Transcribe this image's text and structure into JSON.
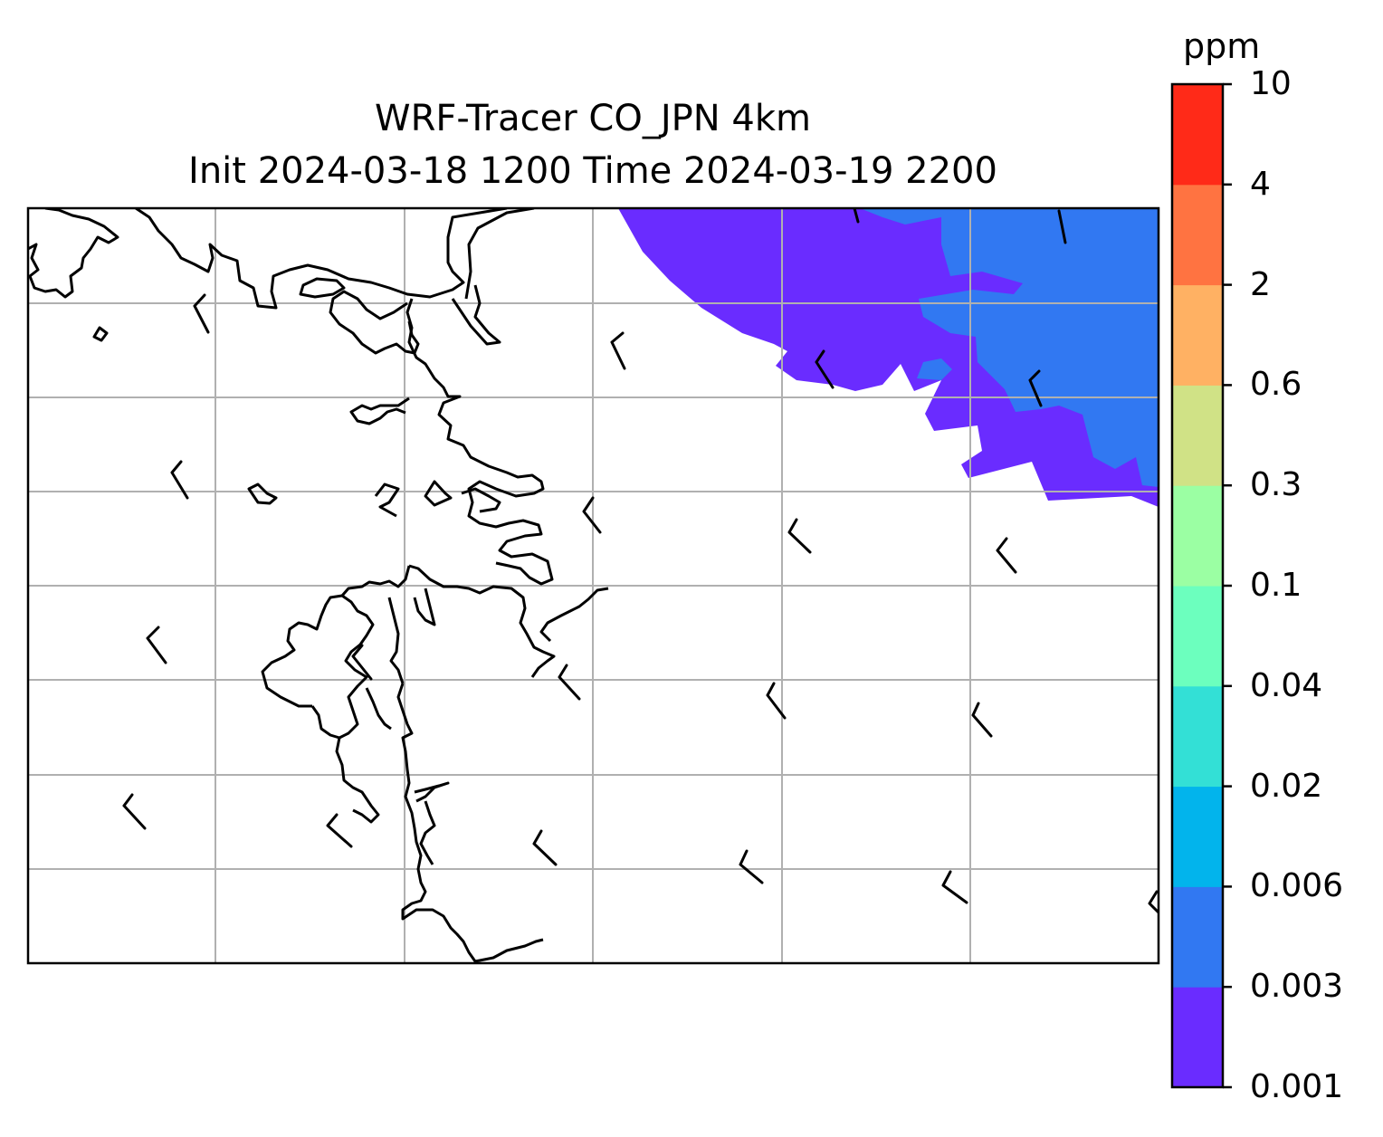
{
  "title": {
    "line1": "WRF-Tracer CO_JPN 4km",
    "line2": "Init 2024-03-18 1200 Time 2024-03-19 2200"
  },
  "colorbar": {
    "unit": "ppm",
    "levels": [
      "0.001",
      "0.003",
      "0.006",
      "0.02",
      "0.04",
      "0.1",
      "0.3",
      "0.6",
      "2",
      "4",
      "10"
    ],
    "colors": [
      "#6a2cff",
      "#3178f2",
      "#02b4ec",
      "#33e0d6",
      "#6cffbe",
      "#9bffa3",
      "#d0e286",
      "#ffb163",
      "#ff7341",
      "#ff2a18"
    ]
  },
  "map": {
    "gridlines": true,
    "grid_color": "#b0b0b0",
    "coastline_color": "#000000",
    "shaded_field": [
      {
        "bin": "0.001-0.003",
        "color": "#6a2cff",
        "region": "north-east edge and north-central"
      },
      {
        "bin": "0.003-0.006",
        "color": "#3178f2",
        "region": "north-east corner"
      }
    ]
  }
}
